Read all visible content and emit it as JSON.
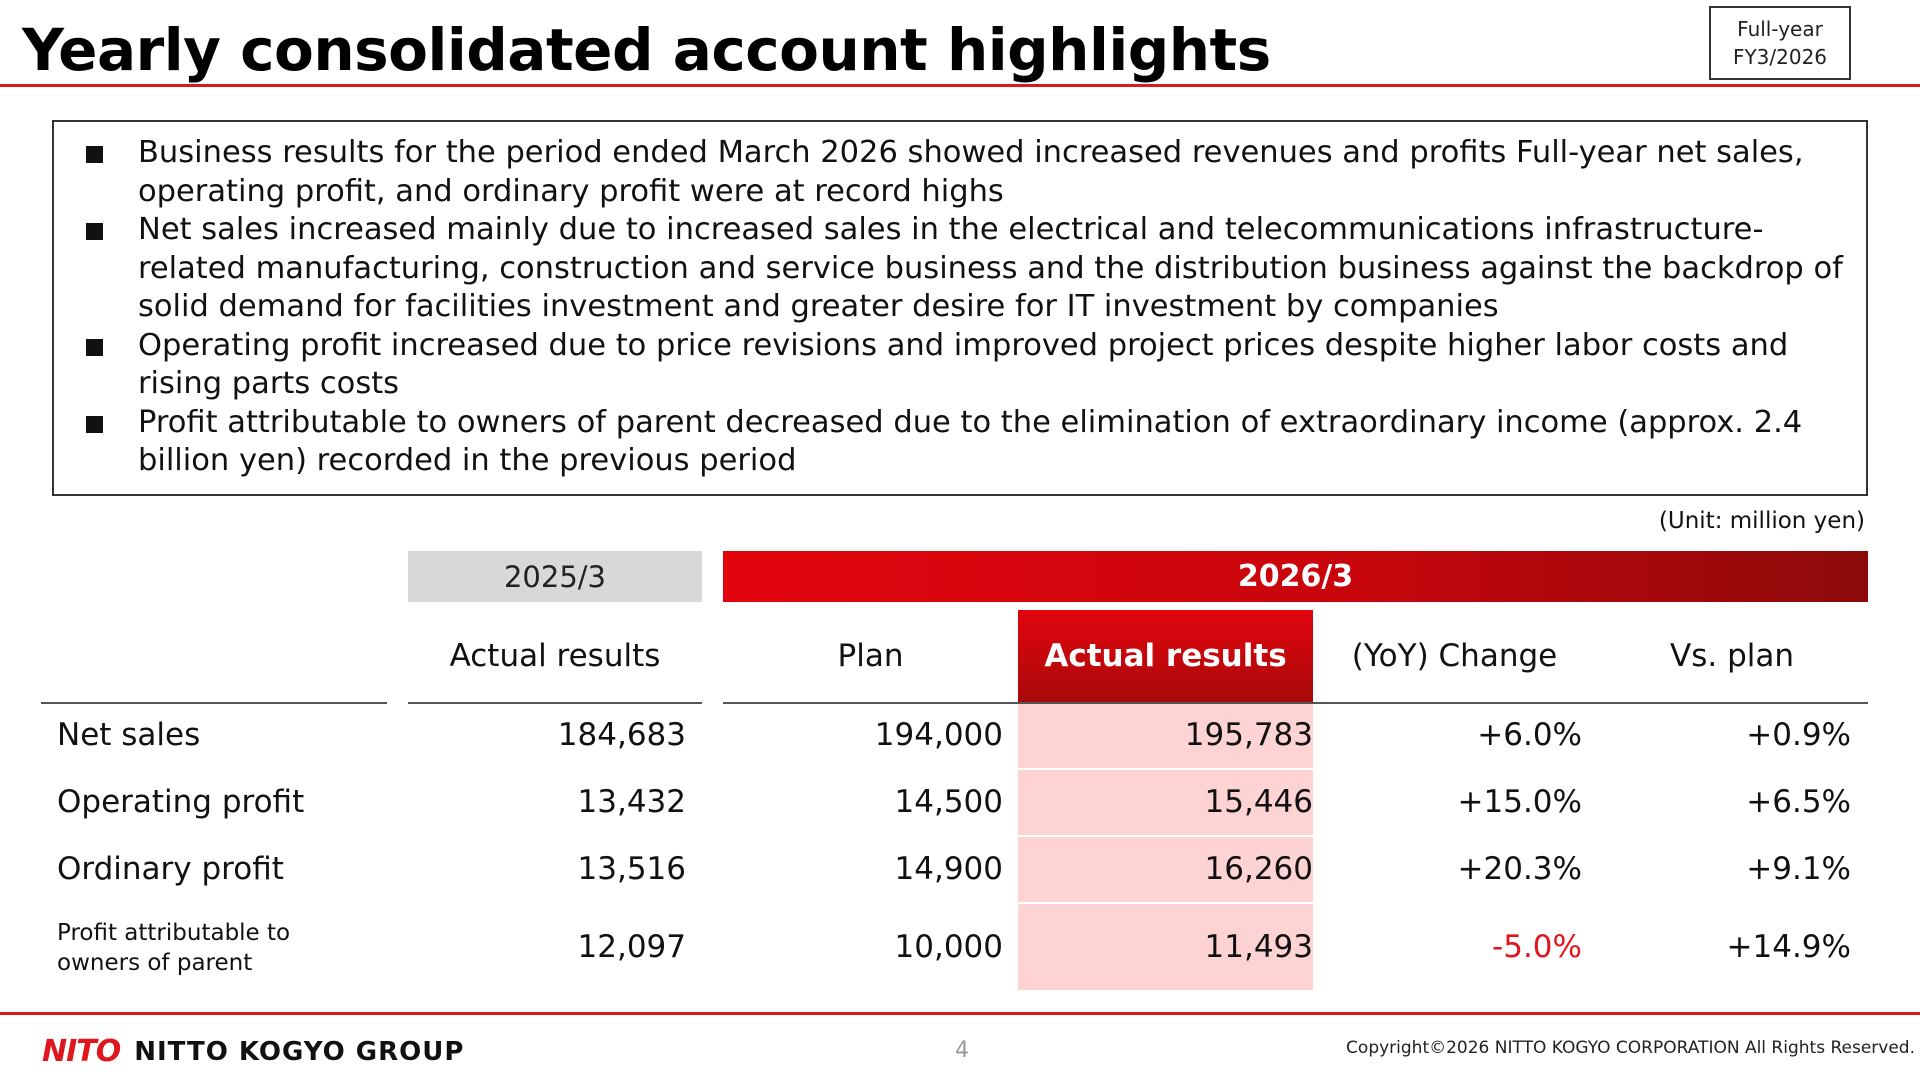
{
  "header": {
    "title": "Yearly consolidated account highlights",
    "period_line1": "Full-year",
    "period_line2": "FY3/2026"
  },
  "summary": {
    "bullets": [
      "Business results for the period ended March 2026 showed increased revenues and profits Full-year net sales, operating profit, and ordinary profit were at record highs",
      "Net sales increased mainly due to increased sales in the electrical and telecommunications infrastructure-related manufacturing, construction and service business and the distribution business against the backdrop of solid demand for facilities investment and greater desire for IT investment by companies",
      "Operating profit increased due to price revisions and improved project prices despite higher labor costs and rising parts costs",
      "Profit attributable to owners of parent decreased due to the elimination of extraordinary income (approx. 2.4 billion yen) recorded in the previous period"
    ]
  },
  "table": {
    "unit": "(Unit: million yen)",
    "group_2025": "2025/3",
    "group_2026": "2026/3",
    "columns": {
      "actual_2025": "Actual results",
      "plan": "Plan",
      "actual_2026": "Actual results",
      "yoy": "(YoY) Change",
      "vs_plan": "Vs. plan"
    },
    "rows": [
      {
        "label": "Net sales",
        "actual_2025": "184,683",
        "plan": "194,000",
        "actual_2026": "195,783",
        "yoy": "+6.0%",
        "vs_plan": "+0.9%"
      },
      {
        "label": "Operating profit",
        "actual_2025": "13,432",
        "plan": "14,500",
        "actual_2026": "15,446",
        "yoy": "+15.0%",
        "vs_plan": "+6.5%"
      },
      {
        "label": "Ordinary profit",
        "actual_2025": "13,516",
        "plan": "14,900",
        "actual_2026": "16,260",
        "yoy": "+20.3%",
        "vs_plan": "+9.1%"
      },
      {
        "label_line1": "Profit attributable to",
        "label_line2": "owners of parent",
        "actual_2025": "12,097",
        "plan": "10,000",
        "actual_2026": "11,493",
        "yoy": "-5.0%",
        "vs_plan": "+14.9%"
      }
    ],
    "negative_color": "#e0161e",
    "highlight_color": "#fdd3d3"
  },
  "footer": {
    "logo_mark": "NITO",
    "logo_text": "NITTO KOGYO GROUP",
    "page_number": "4",
    "copyright": "Copyright©2026 NITTO KOGYO CORPORATION All Rights Reserved."
  },
  "colors": {
    "accent": "#e0161e",
    "header_2025_bg": "#d8d8d8"
  }
}
